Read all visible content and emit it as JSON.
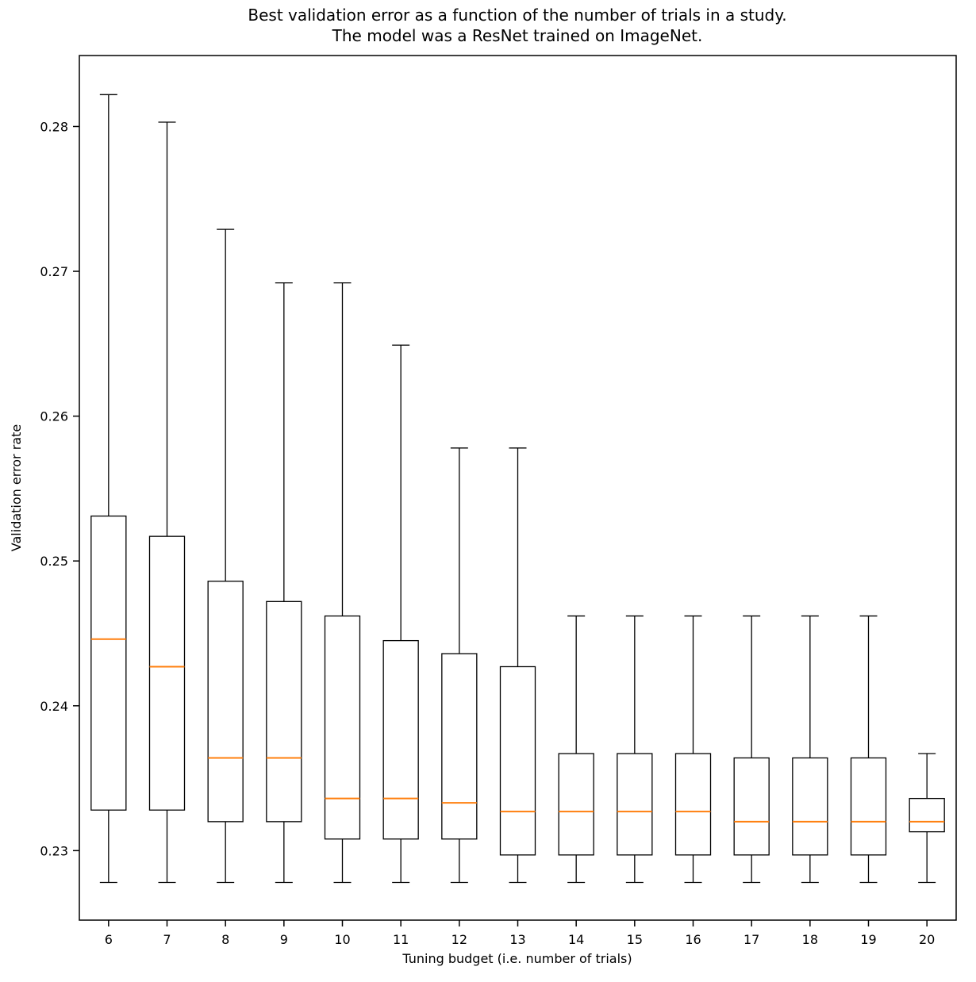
{
  "chart_data": {
    "type": "boxplot",
    "title_line1": "Best validation error as a function of the number of trials in a study.",
    "title_line2": "The model was a ResNet trained on ImageNet.",
    "xlabel": "Tuning budget (i.e. number of trials)",
    "ylabel": "Validation error rate",
    "categories": [
      6,
      7,
      8,
      9,
      10,
      11,
      12,
      13,
      14,
      15,
      16,
      17,
      18,
      19,
      20
    ],
    "yticks": [
      0.23,
      0.24,
      0.25,
      0.26,
      0.27,
      0.28
    ],
    "ylim": [
      0.2252,
      0.2849
    ],
    "series": [
      {
        "whislo": 0.2278,
        "q1": 0.2328,
        "med": 0.2446,
        "q3": 0.2531,
        "whishi": 0.2822
      },
      {
        "whislo": 0.2278,
        "q1": 0.2328,
        "med": 0.2427,
        "q3": 0.2517,
        "whishi": 0.2803
      },
      {
        "whislo": 0.2278,
        "q1": 0.232,
        "med": 0.2364,
        "q3": 0.2486,
        "whishi": 0.2729
      },
      {
        "whislo": 0.2278,
        "q1": 0.232,
        "med": 0.2364,
        "q3": 0.2472,
        "whishi": 0.2692
      },
      {
        "whislo": 0.2278,
        "q1": 0.2308,
        "med": 0.2336,
        "q3": 0.2462,
        "whishi": 0.2692
      },
      {
        "whislo": 0.2278,
        "q1": 0.2308,
        "med": 0.2336,
        "q3": 0.2445,
        "whishi": 0.2649
      },
      {
        "whislo": 0.2278,
        "q1": 0.2308,
        "med": 0.2333,
        "q3": 0.2436,
        "whishi": 0.2578
      },
      {
        "whislo": 0.2278,
        "q1": 0.2297,
        "med": 0.2327,
        "q3": 0.2427,
        "whishi": 0.2578
      },
      {
        "whislo": 0.2278,
        "q1": 0.2297,
        "med": 0.2327,
        "q3": 0.2367,
        "whishi": 0.2462
      },
      {
        "whislo": 0.2278,
        "q1": 0.2297,
        "med": 0.2327,
        "q3": 0.2367,
        "whishi": 0.2462
      },
      {
        "whislo": 0.2278,
        "q1": 0.2297,
        "med": 0.2327,
        "q3": 0.2367,
        "whishi": 0.2462
      },
      {
        "whislo": 0.2278,
        "q1": 0.2297,
        "med": 0.232,
        "q3": 0.2364,
        "whishi": 0.2462
      },
      {
        "whislo": 0.2278,
        "q1": 0.2297,
        "med": 0.232,
        "q3": 0.2364,
        "whishi": 0.2462
      },
      {
        "whislo": 0.2278,
        "q1": 0.2297,
        "med": 0.232,
        "q3": 0.2364,
        "whishi": 0.2462
      },
      {
        "whislo": 0.2278,
        "q1": 0.2313,
        "med": 0.232,
        "q3": 0.2336,
        "whishi": 0.2367
      }
    ],
    "median_color": "#ff7f0e",
    "box_stroke_color": "#000000",
    "background_color": "#ffffff"
  }
}
